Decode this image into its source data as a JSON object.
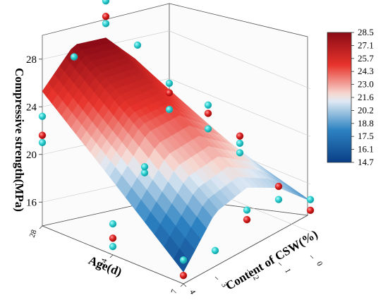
{
  "chart_data": {
    "type": "surface3d",
    "title": "",
    "axes": {
      "z": {
        "label": "Compressive strength(MPa)",
        "ticks": [
          16,
          20,
          24,
          28
        ],
        "range": [
          14,
          30
        ]
      },
      "age": {
        "label": "Age(d)",
        "ticks": [
          7,
          14,
          28
        ],
        "range": [
          7,
          28
        ]
      },
      "csw": {
        "label": "Content of CSW(%)",
        "ticks": [
          0,
          1,
          2,
          3,
          4
        ],
        "range": [
          0,
          4
        ]
      }
    },
    "colorbar": {
      "ticks": [
        28.5,
        27.1,
        25.7,
        24.3,
        23.0,
        21.6,
        20.2,
        18.8,
        17.5,
        16.1,
        14.7
      ],
      "min": 14.7,
      "max": 28.5,
      "low_color": "#0a3f86",
      "mid_color": "#eef3f6",
      "high_color": "#8b0b16"
    },
    "surface": {
      "age_values": [
        7,
        14,
        28
      ],
      "csw_values": [
        0,
        1,
        2,
        3,
        4
      ],
      "z_values": [
        [
          18.6,
          20.3,
          20.9,
          19.4,
          15.0
        ],
        [
          20.3,
          23.2,
          24.8,
          24.0,
          20.2
        ],
        [
          21.9,
          26.1,
          28.6,
          28.6,
          25.3
        ]
      ]
    },
    "points": [
      {
        "age": 28,
        "csw": 4,
        "z": 21.0,
        "color": "#27c9c9"
      },
      {
        "age": 28,
        "csw": 4,
        "z": 21.6,
        "color": "#d81c1c"
      },
      {
        "age": 28,
        "csw": 4,
        "z": 23.2,
        "color": "#27c9c9"
      },
      {
        "age": 28,
        "csw": 3,
        "z": 27.6,
        "color": "#27c9c9"
      },
      {
        "age": 28,
        "csw": 2,
        "z": 29.8,
        "color": "#27c9c9"
      },
      {
        "age": 28,
        "csw": 2,
        "z": 30.4,
        "color": "#d81c1c"
      },
      {
        "age": 28,
        "csw": 2,
        "z": 31.7,
        "color": "#27c9c9"
      },
      {
        "age": 28,
        "csw": 1,
        "z": 27.4,
        "color": "#27c9c9"
      },
      {
        "age": 28,
        "csw": 0,
        "z": 21.4,
        "color": "#27c9c9"
      },
      {
        "age": 28,
        "csw": 0,
        "z": 22.8,
        "color": "#d81c1c"
      },
      {
        "age": 28,
        "csw": 0,
        "z": 23.6,
        "color": "#27c9c9"
      },
      {
        "age": 14,
        "csw": 4,
        "z": 14.7,
        "color": "#27c9c9"
      },
      {
        "age": 14,
        "csw": 4,
        "z": 15.4,
        "color": "#d81c1c"
      },
      {
        "age": 14,
        "csw": 4,
        "z": 16.6,
        "color": "#27c9c9"
      },
      {
        "age": 14,
        "csw": 3,
        "z": 20.3,
        "color": "#27c9c9"
      },
      {
        "age": 14,
        "csw": 3,
        "z": 20.8,
        "color": "#27c9c9"
      },
      {
        "age": 14,
        "csw": 1,
        "z": 22.8,
        "color": "#27c9c9"
      },
      {
        "age": 14,
        "csw": 1,
        "z": 24.1,
        "color": "#d81c1c"
      },
      {
        "age": 14,
        "csw": 1,
        "z": 24.8,
        "color": "#27c9c9"
      },
      {
        "age": 14,
        "csw": 0,
        "z": 20.2,
        "color": "#27c9c9"
      },
      {
        "age": 14,
        "csw": 0,
        "z": 21.0,
        "color": "#27c9c9"
      },
      {
        "age": 14,
        "csw": 0,
        "z": 21.6,
        "color": "#d81c1c"
      },
      {
        "age": 7,
        "csw": 4,
        "z": 14.7,
        "color": "#d81c1c"
      },
      {
        "age": 7,
        "csw": 4,
        "z": 16.0,
        "color": "#27c9c9"
      },
      {
        "age": 7,
        "csw": 3,
        "z": 16.2,
        "color": "#27c9c9"
      },
      {
        "age": 7,
        "csw": 2,
        "z": 18.2,
        "color": "#d81c1c"
      },
      {
        "age": 7,
        "csw": 2,
        "z": 19.0,
        "color": "#27c9c9"
      },
      {
        "age": 7,
        "csw": 1,
        "z": 19.3,
        "color": "#27c9c9"
      },
      {
        "age": 7,
        "csw": 1,
        "z": 20.4,
        "color": "#d81c1c"
      },
      {
        "age": 7,
        "csw": 0,
        "z": 17.8,
        "color": "#d81c1c"
      },
      {
        "age": 7,
        "csw": 0,
        "z": 18.7,
        "color": "#27c9c9"
      }
    ]
  }
}
